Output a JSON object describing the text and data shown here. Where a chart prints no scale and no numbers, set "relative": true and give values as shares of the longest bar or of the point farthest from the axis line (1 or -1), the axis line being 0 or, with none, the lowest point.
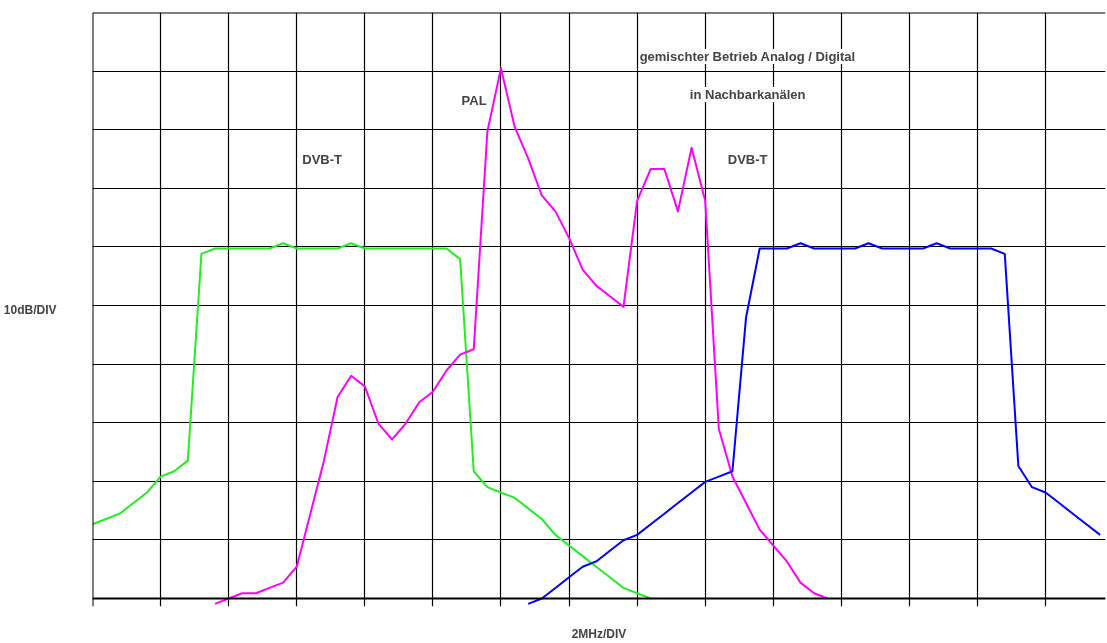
{
  "chart_data": {
    "type": "line",
    "relative": true,
    "grid": true,
    "xlabel": "2MHz/DIV",
    "ylabel": "10dB/DIV",
    "annotations": [
      "DVB-T",
      "PAL",
      "gemischter Betrieb Analog / Digital",
      "in Nachbarkanälen",
      "DVB-T"
    ],
    "categories": [
      null,
      null,
      null,
      null,
      null,
      null,
      null,
      null,
      null,
      null,
      null,
      null,
      null,
      null,
      null,
      null,
      null,
      null,
      null,
      null,
      null,
      null,
      null,
      null,
      null,
      null,
      null,
      null,
      null,
      null,
      null,
      null,
      null,
      null,
      null,
      null,
      null,
      null,
      null,
      null,
      null,
      null,
      null,
      null,
      null,
      null,
      null,
      null,
      null,
      null,
      null,
      null,
      null,
      null,
      null,
      null,
      null,
      null,
      null,
      null,
      null,
      null,
      null,
      null,
      null,
      null,
      null,
      null,
      null,
      null,
      null,
      null,
      null,
      null,
      null
    ],
    "series": [
      {
        "color": "#22ee22",
        "values": [
          0.14,
          0.15,
          0.16,
          0.18,
          0.2,
          0.23,
          0.24,
          0.26,
          0.65,
          0.66,
          0.66,
          0.66,
          0.66,
          0.66,
          0.67,
          0.66,
          0.66,
          0.66,
          0.66,
          0.67,
          0.66,
          0.66,
          0.66,
          0.66,
          0.66,
          0.66,
          0.66,
          0.64,
          0.24,
          0.21,
          0.2,
          0.19,
          0.17,
          0.15,
          0.12,
          0.1,
          0.08,
          0.06,
          0.04,
          0.02,
          0.01,
          0.0,
          null,
          null,
          null,
          null,
          null,
          null,
          null,
          null,
          null,
          null,
          null,
          null,
          null,
          null,
          null,
          null,
          null,
          null,
          null,
          null,
          null,
          null,
          null,
          null,
          null,
          null,
          null,
          null,
          null,
          null,
          null,
          null,
          null
        ]
      },
      {
        "color": "#ff00ff",
        "values": [
          null,
          null,
          null,
          null,
          null,
          null,
          null,
          null,
          null,
          -0.01,
          0.0,
          0.01,
          0.01,
          0.02,
          0.03,
          0.06,
          0.16,
          0.26,
          0.38,
          0.42,
          0.4,
          0.33,
          0.3,
          0.33,
          0.37,
          0.39,
          0.43,
          0.46,
          0.47,
          0.88,
          1.0,
          0.89,
          0.83,
          0.76,
          0.73,
          0.68,
          0.62,
          0.59,
          0.57,
          0.55,
          0.75,
          0.81,
          0.81,
          0.73,
          0.85,
          0.75,
          0.32,
          0.23,
          0.18,
          0.13,
          0.1,
          0.07,
          0.03,
          0.01,
          0.0,
          null,
          null,
          null,
          null,
          null,
          null,
          null,
          null,
          null,
          null,
          null,
          null,
          null,
          null,
          null,
          null,
          null,
          null,
          null,
          null
        ]
      },
      {
        "color": "#0000ff",
        "values": [
          null,
          null,
          null,
          null,
          null,
          null,
          null,
          null,
          null,
          null,
          null,
          null,
          null,
          null,
          null,
          null,
          null,
          null,
          null,
          null,
          null,
          null,
          null,
          null,
          null,
          null,
          null,
          null,
          null,
          null,
          null,
          null,
          -0.01,
          0.0,
          0.02,
          0.04,
          0.06,
          0.07,
          0.09,
          0.11,
          0.12,
          0.14,
          0.16,
          0.18,
          0.2,
          0.22,
          0.23,
          0.24,
          0.53,
          0.66,
          0.66,
          0.66,
          0.67,
          0.66,
          0.66,
          0.66,
          0.66,
          0.67,
          0.66,
          0.66,
          0.66,
          0.66,
          0.67,
          0.66,
          0.66,
          0.66,
          0.66,
          0.65,
          0.25,
          0.21,
          0.2,
          0.18,
          0.16,
          0.14,
          0.12
        ]
      }
    ]
  }
}
